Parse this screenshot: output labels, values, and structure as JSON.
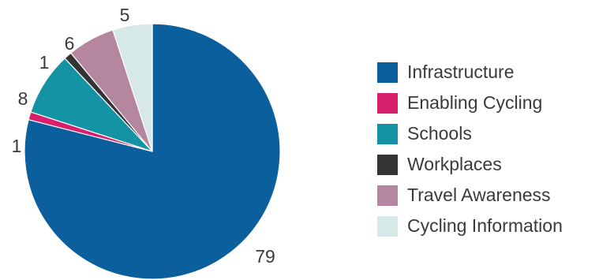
{
  "chart_data": {
    "type": "pie",
    "title": "",
    "slices": [
      {
        "name": "Infrastructure",
        "value": 79,
        "label": "79",
        "color": "#0c5f9d"
      },
      {
        "name": "Enabling Cycling",
        "value": 1,
        "label": "1",
        "color": "#d81f6c"
      },
      {
        "name": "Schools",
        "value": 8,
        "label": "8",
        "color": "#1493a4"
      },
      {
        "name": "Workplaces",
        "value": 1,
        "label": "1",
        "color": "#333333"
      },
      {
        "name": "Travel Awareness",
        "value": 6,
        "label": "6",
        "color": "#b5879f"
      },
      {
        "name": "Cycling Information",
        "value": 5,
        "label": "5",
        "color": "#d7e8e8"
      }
    ],
    "legend_position": "right"
  },
  "legend": {
    "items": [
      {
        "label": "Infrastructure",
        "color": "#0c5f9d"
      },
      {
        "label": "Enabling Cycling",
        "color": "#d81f6c"
      },
      {
        "label": "Schools",
        "color": "#1493a4"
      },
      {
        "label": "Workplaces",
        "color": "#333333"
      },
      {
        "label": "Travel Awareness",
        "color": "#b5879f"
      },
      {
        "label": "Cycling Information",
        "color": "#d7e8e8"
      }
    ]
  }
}
